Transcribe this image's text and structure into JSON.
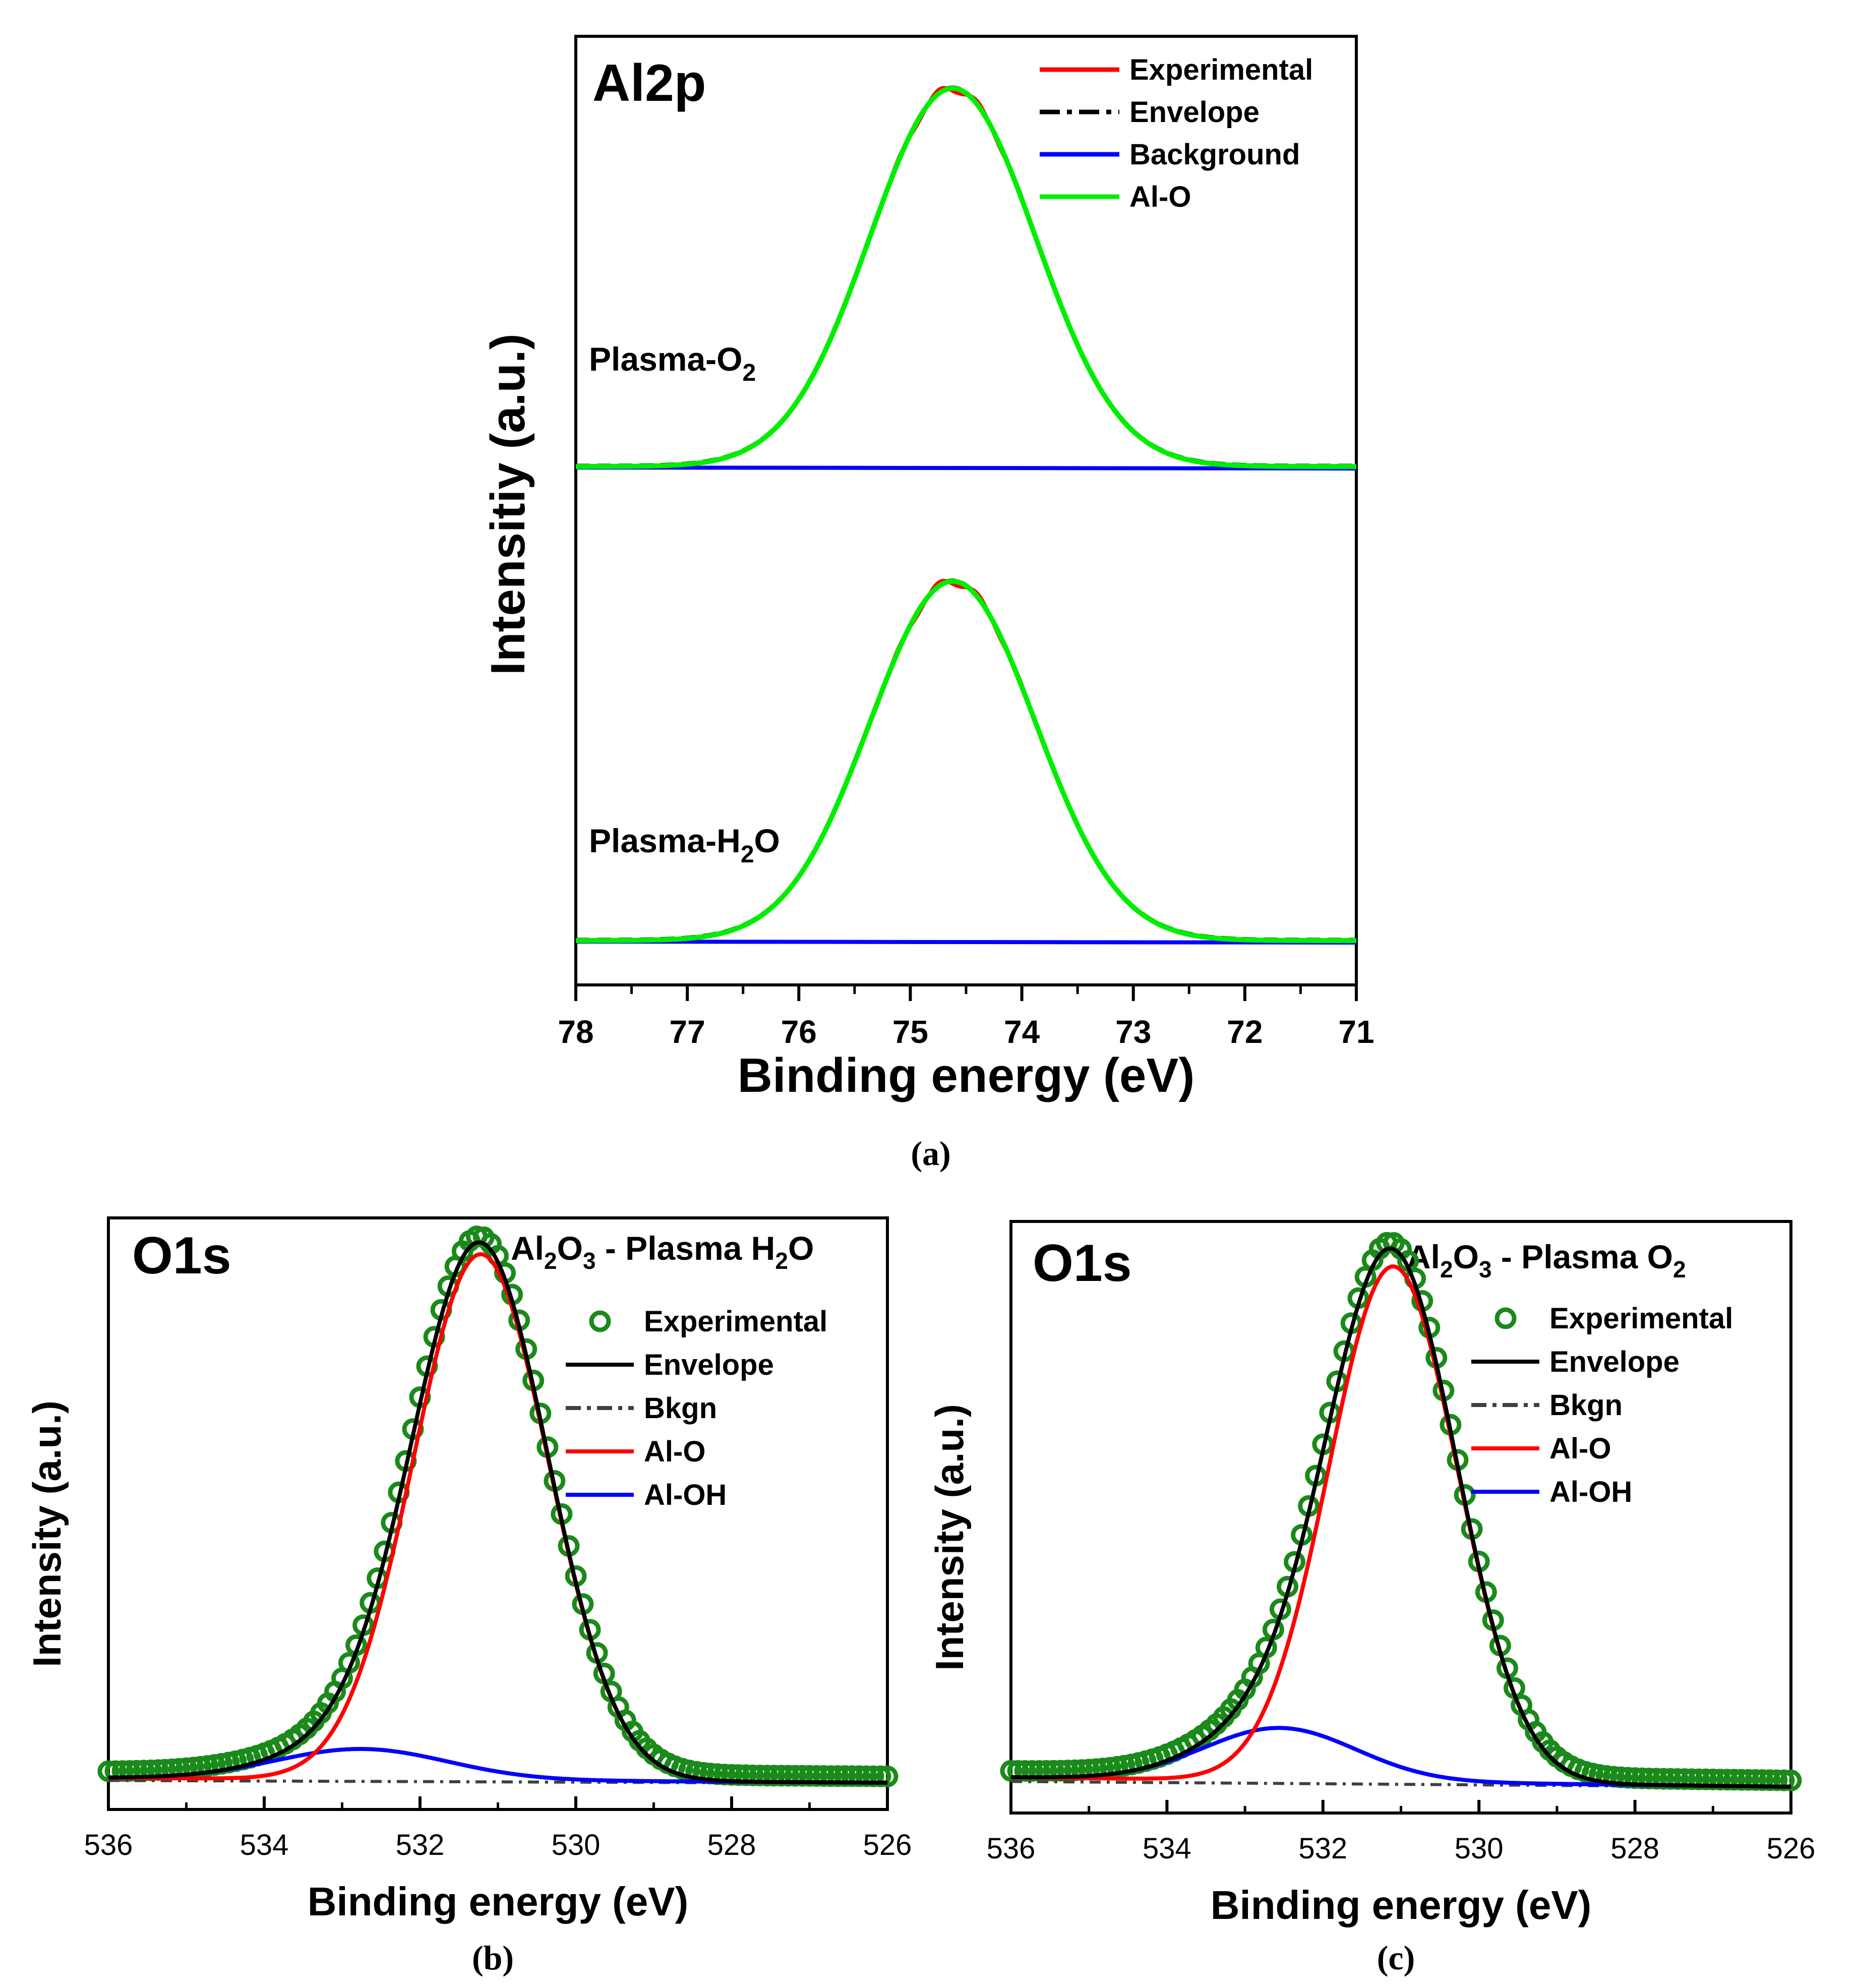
{
  "chart_data": [
    {
      "id": "a",
      "type": "line",
      "caption": "(a)",
      "title": "Al2p",
      "xlabel": "Binding energy (eV)",
      "ylabel": "Intensitiy (a.u.)",
      "xlim": [
        78,
        71
      ],
      "xticks": [
        "78",
        "77",
        "76",
        "75",
        "74",
        "73",
        "72",
        "71"
      ],
      "y_ticks_shown": false,
      "legend_position": "top-right",
      "legend": [
        {
          "label": "Experimental",
          "color": "#ff0000",
          "style": "solid"
        },
        {
          "label": "Envelope",
          "color": "#000000",
          "style": "dash"
        },
        {
          "label": "Background",
          "color": "#0000ff",
          "style": "solid"
        },
        {
          "label": "Al-O",
          "color": "#00ee00",
          "style": "solid"
        }
      ],
      "annotations": [
        {
          "text": "Plasma-O",
          "sub": "2",
          "tail": ""
        },
        {
          "text": "Plasma-H",
          "sub": "2",
          "tail": "O"
        }
      ],
      "spectra": [
        {
          "sample": "Plasma-O2",
          "offset": 1.2,
          "peak_center_eV": 74.62,
          "peak_fwhm_eV": 1.75,
          "peak_height": 1.0,
          "background_level": 0.0
        },
        {
          "sample": "Plasma-H2O",
          "offset": 0.0,
          "peak_center_eV": 74.62,
          "peak_fwhm_eV": 1.75,
          "peak_height": 0.95,
          "background_level": 0.0
        }
      ]
    },
    {
      "id": "b",
      "type": "line",
      "caption": "(b)",
      "title": "O1s",
      "subtitle": {
        "p1": "Al",
        "s1": "2",
        "p2": "O",
        "s2": "3",
        "p3": " - Plasma H",
        "s3": "2",
        "p4": "O"
      },
      "xlabel": "Binding energy (eV)",
      "ylabel": "Intensity (a.u.)",
      "xlim": [
        536,
        526
      ],
      "xticks": [
        "536",
        "534",
        "532",
        "530",
        "528",
        "526"
      ],
      "y_ticks_shown": false,
      "legend_position": "top-right",
      "legend": [
        {
          "label": "Experimental",
          "color": "#1a8a1a",
          "style": "circle"
        },
        {
          "label": "Envelope",
          "color": "#000000",
          "style": "solid"
        },
        {
          "label": "Bkgn",
          "color": "#404040",
          "style": "dashdot"
        },
        {
          "label": "Al-O",
          "color": "#ff0000",
          "style": "solid"
        },
        {
          "label": "Al-OH",
          "color": "#0000ff",
          "style": "solid"
        }
      ],
      "components": {
        "Al-O": {
          "center_eV": 531.22,
          "fwhm_eV": 2.05,
          "height": 1.0
        },
        "Al-OH": {
          "center_eV": 532.75,
          "fwhm_eV": 2.6,
          "height": 0.058
        },
        "background": {
          "start": 0.012,
          "end": 0.003
        }
      }
    },
    {
      "id": "c",
      "type": "line",
      "caption": "(c)",
      "title": "O1s",
      "subtitle": {
        "p1": "Al",
        "s1": "2",
        "p2": "O",
        "s2": "3",
        "p3": " - Plasma O",
        "s3": "2",
        "p4": ""
      },
      "xlabel": "Binding energy (eV)",
      "ylabel": "Intensity (a.u.)",
      "xlim": [
        536,
        526
      ],
      "xticks": [
        "536",
        "534",
        "532",
        "530",
        "528",
        "526"
      ],
      "y_ticks_shown": false,
      "legend_position": "top-right",
      "legend": [
        {
          "label": "Experimental",
          "color": "#1a8a1a",
          "style": "circle"
        },
        {
          "label": "Envelope",
          "color": "#000000",
          "style": "solid"
        },
        {
          "label": "Bkgn",
          "color": "#404040",
          "style": "dashdot"
        },
        {
          "label": "Al-O",
          "color": "#ff0000",
          "style": "solid"
        },
        {
          "label": "Al-OH",
          "color": "#0000ff",
          "style": "solid"
        }
      ],
      "components": {
        "Al-O": {
          "center_eV": 531.1,
          "fwhm_eV": 1.95,
          "height": 0.98
        },
        "Al-OH": {
          "center_eV": 532.55,
          "fwhm_eV": 2.3,
          "height": 0.1
        },
        "background": {
          "start": 0.02,
          "end": 0.002
        }
      }
    }
  ]
}
